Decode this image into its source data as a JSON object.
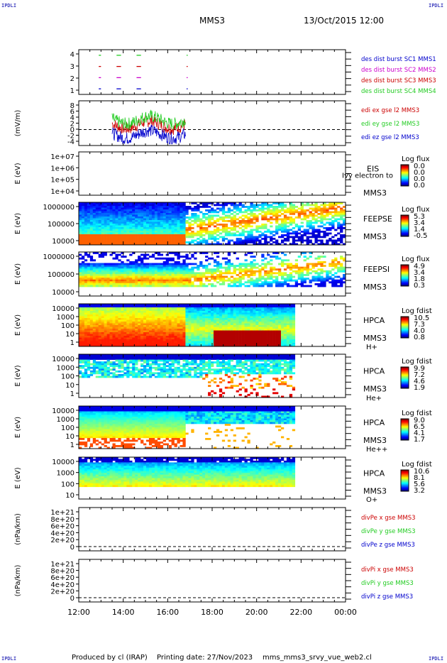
{
  "corners": {
    "tl": "IPDLI",
    "tr": "IPDLI",
    "bl": "IPDLI",
    "br": "IPDLI"
  },
  "header": {
    "mission": "MMS3",
    "datetime": "13/Oct/2015 12:00"
  },
  "footer": {
    "produced": "Produced by cl (IRAP)",
    "printed": "Printing date: 27/Nov/2023",
    "file": "mms_mms3_srvy_vue_web2.cl"
  },
  "colors": {
    "red": "#cc0000",
    "green": "#22cc22",
    "blue": "#0000cc",
    "magenta": "#cc00cc"
  },
  "chart_data": [
    {
      "type": "scatter",
      "ylabel": "",
      "yticks": [
        "4",
        "3",
        "2",
        "1"
      ],
      "ylim": [
        0.5,
        4.5
      ],
      "xlim_hours": [
        12,
        24
      ],
      "series": [
        {
          "name": "des dist burst SC1 MMS1",
          "color": "#0000cc",
          "y": 1,
          "segments": [
            [
              12.9,
              13.0
            ],
            [
              13.7,
              13.9
            ],
            [
              14.6,
              14.8
            ],
            [
              16.85,
              16.9
            ]
          ]
        },
        {
          "name": "des dist burst SC2 MMS2",
          "color": "#cc00cc",
          "y": 2,
          "segments": [
            [
              12.9,
              13.0
            ],
            [
              13.7,
              13.9
            ],
            [
              14.6,
              14.8
            ],
            [
              16.85,
              16.9
            ]
          ]
        },
        {
          "name": "des dist burst SC3 MMS3",
          "color": "#cc0000",
          "y": 3,
          "segments": [
            [
              12.9,
              13.0
            ],
            [
              13.7,
              13.9
            ],
            [
              14.6,
              14.8
            ],
            [
              16.85,
              16.9
            ]
          ]
        },
        {
          "name": "des dist burst SC4 MMS4",
          "color": "#22cc22",
          "y": 4,
          "segments": [
            [
              12.9,
              13.0
            ],
            [
              13.7,
              13.9
            ],
            [
              14.6,
              14.8
            ],
            [
              16.85,
              16.9
            ]
          ]
        }
      ]
    },
    {
      "type": "line",
      "ylabel": "(mV/m)",
      "yticks": [
        "8",
        "6",
        "4",
        "2",
        "0",
        "-2",
        "-4"
      ],
      "ylim": [
        -5,
        9
      ],
      "dashed_zero": true,
      "active_hours": [
        13.5,
        16.8
      ],
      "series": [
        {
          "name": "edi ex gse l2 MMS3",
          "color": "#cc0000"
        },
        {
          "name": "edi ey gse l2 MMS3",
          "color": "#22cc22"
        },
        {
          "name": "edi ez gse l2 MMS3",
          "color": "#0000cc"
        }
      ]
    },
    {
      "type": "heatmap",
      "ylabel": "E (eV)",
      "yticks": [
        "1e+07",
        "1e+06",
        "1e+05",
        "1e+04"
      ],
      "labels": [
        "EIS",
        "MMS3"
      ],
      "overlay_label": "Ivy electron to",
      "cbar_title": "Log flux",
      "cbar_ticks": [
        "0.0",
        "0.0",
        "0.0",
        "0.0"
      ],
      "empty": true
    },
    {
      "type": "heatmap",
      "ylabel": "E (eV)",
      "yticks": [
        "1000000",
        "100000",
        "10000"
      ],
      "labels": [
        "FEEPSE",
        "MMS3"
      ],
      "cbar_title": "Log flux",
      "cbar_ticks": [
        "5.3",
        "3.4",
        "1.4",
        "-0.5"
      ]
    },
    {
      "type": "heatmap",
      "ylabel": "E (eV)",
      "yticks": [
        "1000000",
        "100000",
        "10000"
      ],
      "labels": [
        "FEEPSI",
        "MMS3"
      ],
      "cbar_title": "Log flux",
      "cbar_ticks": [
        "4.9",
        "3.4",
        "1.8",
        "0.3"
      ]
    },
    {
      "type": "heatmap",
      "ylabel": "E (eV)",
      "yticks": [
        "10000",
        "1000",
        "100",
        "10",
        "1"
      ],
      "labels": [
        "HPCA",
        "MMS3",
        "H+"
      ],
      "cbar_title": "Log fdist",
      "cbar_ticks": [
        "10.5",
        "7.3",
        "4.0",
        "0.8"
      ]
    },
    {
      "type": "heatmap",
      "ylabel": "E (eV)",
      "yticks": [
        "10000",
        "1000",
        "100",
        "10",
        "1"
      ],
      "labels": [
        "HPCA",
        "MMS3",
        "He+"
      ],
      "cbar_title": "Log fdist",
      "cbar_ticks": [
        "9.9",
        "7.2",
        "4.6",
        "1.9"
      ]
    },
    {
      "type": "heatmap",
      "ylabel": "E (eV)",
      "yticks": [
        "10000",
        "1000",
        "100",
        "10",
        "1"
      ],
      "labels": [
        "HPCA",
        "MMS3",
        "He++"
      ],
      "cbar_title": "Log fdist",
      "cbar_ticks": [
        "9.0",
        "6.5",
        "4.1",
        "1.7"
      ]
    },
    {
      "type": "heatmap",
      "ylabel": "E (eV)",
      "yticks": [
        "10000",
        "1000",
        "100",
        "10"
      ],
      "labels": [
        "HPCA",
        "MMS3",
        "O+"
      ],
      "cbar_title": "Log fdist",
      "cbar_ticks": [
        "10.6",
        "8.1",
        "5.6",
        "3.2"
      ]
    },
    {
      "type": "line",
      "ylabel": "(nPa/km)",
      "yticks": [
        "1e+21",
        "8e+20",
        "6e+20",
        "4e+20",
        "2e+20",
        "0"
      ],
      "dashed_zero": true,
      "series": [
        {
          "name": "divPe x gse MMS3",
          "color": "#cc0000"
        },
        {
          "name": "divPe y gse MMS3",
          "color": "#22cc22"
        },
        {
          "name": "divPe z gse MMS3",
          "color": "#0000cc"
        }
      ]
    },
    {
      "type": "line",
      "ylabel": "(nPa/km)",
      "yticks": [
        "1e+21",
        "8e+20",
        "6e+20",
        "4e+20",
        "2e+20",
        "0"
      ],
      "dashed_zero": true,
      "series": [
        {
          "name": "divPi x gse MMS3",
          "color": "#cc0000"
        },
        {
          "name": "divPi y gse MMS3",
          "color": "#22cc22"
        },
        {
          "name": "divPi z gse MMS3",
          "color": "#0000cc"
        }
      ]
    }
  ],
  "x_axis": {
    "ticks": [
      "12:00",
      "14:00",
      "16:00",
      "18:00",
      "20:00",
      "22:00",
      "00:00"
    ]
  }
}
